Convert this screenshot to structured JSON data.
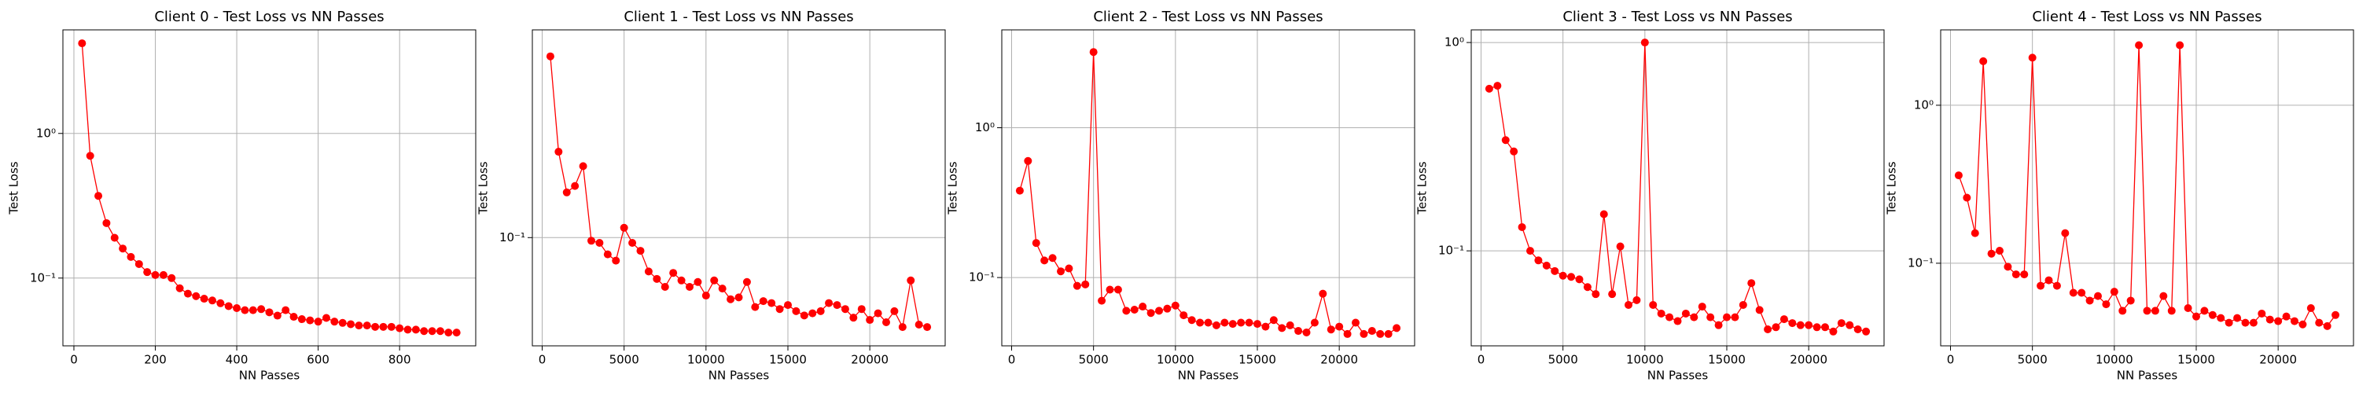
{
  "chart_data": [
    {
      "type": "line",
      "title": "Client 0 - Test Loss vs NN Passes",
      "x_label": "NN Passes",
      "y_label": "Test Loss",
      "color": "#ff0000",
      "log_y": true,
      "grid": true,
      "x": [
        20,
        40,
        60,
        80,
        100,
        120,
        140,
        160,
        180,
        200,
        220,
        240,
        260,
        280,
        300,
        320,
        340,
        360,
        380,
        400,
        420,
        440,
        460,
        480,
        500,
        520,
        540,
        560,
        580,
        600,
        620,
        640,
        660,
        680,
        700,
        720,
        740,
        760,
        780,
        800,
        820,
        840,
        860,
        880,
        900,
        920,
        940
      ],
      "values": [
        4.2,
        0.7,
        0.37,
        0.24,
        0.19,
        0.16,
        0.14,
        0.125,
        0.11,
        0.105,
        0.105,
        0.1,
        0.085,
        0.078,
        0.075,
        0.072,
        0.07,
        0.067,
        0.064,
        0.062,
        0.06,
        0.06,
        0.061,
        0.058,
        0.055,
        0.06,
        0.054,
        0.052,
        0.051,
        0.05,
        0.053,
        0.05,
        0.049,
        0.048,
        0.047,
        0.047,
        0.046,
        0.046,
        0.046,
        0.045,
        0.044,
        0.044,
        0.043,
        0.043,
        0.043,
        0.042,
        0.042
      ],
      "xlim": [
        -27,
        987
      ],
      "xticks": [
        0,
        200,
        400,
        600,
        800
      ],
      "ylim": [
        0.034,
        5.2
      ],
      "yticks": [
        {
          "value": 0.1,
          "label": "10⁻¹"
        },
        {
          "value": 1,
          "label": "10⁰"
        }
      ]
    },
    {
      "type": "line",
      "title": "Client 1 - Test Loss vs NN Passes",
      "x_label": "NN Passes",
      "y_label": "Test Loss",
      "color": "#ff0000",
      "log_y": true,
      "grid": true,
      "x": [
        500,
        1000,
        1500,
        2000,
        2500,
        3000,
        3500,
        4000,
        4500,
        5000,
        5500,
        6000,
        6500,
        7000,
        7500,
        8000,
        8500,
        9000,
        9500,
        10000,
        10500,
        11000,
        11500,
        12000,
        12500,
        13000,
        13500,
        14000,
        14500,
        15000,
        15500,
        16000,
        16500,
        17000,
        17500,
        18000,
        18500,
        19000,
        19500,
        20000,
        20500,
        21000,
        21500,
        22000,
        22500,
        23000,
        23500
      ],
      "values": [
        0.58,
        0.23,
        0.155,
        0.165,
        0.2,
        0.097,
        0.095,
        0.085,
        0.08,
        0.11,
        0.095,
        0.088,
        0.072,
        0.067,
        0.062,
        0.071,
        0.066,
        0.062,
        0.065,
        0.057,
        0.066,
        0.061,
        0.055,
        0.056,
        0.065,
        0.051,
        0.054,
        0.053,
        0.05,
        0.052,
        0.049,
        0.047,
        0.048,
        0.049,
        0.053,
        0.052,
        0.05,
        0.046,
        0.05,
        0.045,
        0.048,
        0.044,
        0.049,
        0.042,
        0.066,
        0.043,
        0.042
      ],
      "xlim": [
        -600,
        24600
      ],
      "xticks": [
        0,
        5000,
        10000,
        15000,
        20000
      ],
      "ylim": [
        0.035,
        0.75
      ],
      "yticks": [
        {
          "value": 0.1,
          "label": "10⁻¹"
        }
      ]
    },
    {
      "type": "line",
      "title": "Client 2 - Test Loss vs NN Passes",
      "x_label": "NN Passes",
      "y_label": "Test Loss",
      "color": "#ff0000",
      "log_y": true,
      "grid": true,
      "x": [
        500,
        1000,
        1500,
        2000,
        2500,
        3000,
        3500,
        4000,
        4500,
        5000,
        5500,
        6000,
        6500,
        7000,
        7500,
        8000,
        8500,
        9000,
        9500,
        10000,
        10500,
        11000,
        11500,
        12000,
        12500,
        13000,
        13500,
        14000,
        14500,
        15000,
        15500,
        16000,
        16500,
        17000,
        17500,
        18000,
        18500,
        19000,
        19500,
        20000,
        20500,
        21000,
        21500,
        22000,
        22500,
        23000,
        23500
      ],
      "values": [
        0.38,
        0.6,
        0.17,
        0.13,
        0.135,
        0.11,
        0.115,
        0.088,
        0.09,
        3.2,
        0.07,
        0.083,
        0.083,
        0.06,
        0.061,
        0.064,
        0.058,
        0.06,
        0.062,
        0.065,
        0.056,
        0.052,
        0.05,
        0.05,
        0.048,
        0.05,
        0.049,
        0.05,
        0.05,
        0.049,
        0.047,
        0.052,
        0.046,
        0.048,
        0.044,
        0.043,
        0.05,
        0.078,
        0.045,
        0.047,
        0.042,
        0.05,
        0.042,
        0.044,
        0.042,
        0.042,
        0.046
      ],
      "xlim": [
        -600,
        24600
      ],
      "xticks": [
        0,
        5000,
        10000,
        15000,
        20000
      ],
      "ylim": [
        0.035,
        4.5
      ],
      "yticks": [
        {
          "value": 0.1,
          "label": "10⁻¹"
        },
        {
          "value": 1,
          "label": "10⁰"
        }
      ]
    },
    {
      "type": "line",
      "title": "Client 3 - Test Loss vs NN Passes",
      "x_label": "NN Passes",
      "y_label": "Test Loss",
      "color": "#ff0000",
      "log_y": true,
      "grid": true,
      "x": [
        500,
        1000,
        1500,
        2000,
        2500,
        3000,
        3500,
        4000,
        4500,
        5000,
        5500,
        6000,
        6500,
        7000,
        7500,
        8000,
        8500,
        9000,
        9500,
        10000,
        10500,
        11000,
        11500,
        12000,
        12500,
        13000,
        13500,
        14000,
        14500,
        15000,
        15500,
        16000,
        16500,
        17000,
        17500,
        18000,
        18500,
        19000,
        19500,
        20000,
        20500,
        21000,
        21500,
        22000,
        22500,
        23000,
        23500
      ],
      "values": [
        0.6,
        0.62,
        0.34,
        0.3,
        0.13,
        0.1,
        0.09,
        0.085,
        0.08,
        0.076,
        0.075,
        0.073,
        0.067,
        0.062,
        0.15,
        0.062,
        0.105,
        0.055,
        0.058,
        1.0,
        0.055,
        0.05,
        0.048,
        0.046,
        0.05,
        0.048,
        0.054,
        0.048,
        0.044,
        0.048,
        0.048,
        0.055,
        0.07,
        0.052,
        0.042,
        0.043,
        0.047,
        0.045,
        0.044,
        0.044,
        0.043,
        0.043,
        0.041,
        0.045,
        0.044,
        0.042,
        0.041
      ],
      "xlim": [
        -600,
        24600
      ],
      "xticks": [
        0,
        5000,
        10000,
        15000,
        20000
      ],
      "ylim": [
        0.035,
        1.15
      ],
      "yticks": [
        {
          "value": 0.1,
          "label": "10⁻¹"
        },
        {
          "value": 1,
          "label": "10⁰"
        }
      ]
    },
    {
      "type": "line",
      "title": "Client 4 - Test Loss vs NN Passes",
      "x_label": "NN Passes",
      "y_label": "Test Loss",
      "color": "#ff0000",
      "log_y": true,
      "grid": true,
      "x": [
        500,
        1000,
        1500,
        2000,
        2500,
        3000,
        3500,
        4000,
        4500,
        5000,
        5500,
        6000,
        6500,
        7000,
        7500,
        8000,
        8500,
        9000,
        9500,
        10000,
        10500,
        11000,
        11500,
        12000,
        12500,
        13000,
        13500,
        14000,
        14500,
        15000,
        15500,
        16000,
        16500,
        17000,
        17500,
        18000,
        18500,
        19000,
        19500,
        20000,
        20500,
        21000,
        21500,
        22000,
        22500,
        23000,
        23500
      ],
      "values": [
        0.36,
        0.26,
        0.155,
        1.9,
        0.115,
        0.12,
        0.095,
        0.085,
        0.085,
        2.0,
        0.072,
        0.078,
        0.072,
        0.155,
        0.065,
        0.065,
        0.058,
        0.062,
        0.055,
        0.066,
        0.05,
        0.058,
        2.4,
        0.05,
        0.05,
        0.062,
        0.05,
        2.4,
        0.052,
        0.046,
        0.05,
        0.047,
        0.045,
        0.042,
        0.045,
        0.042,
        0.042,
        0.048,
        0.044,
        0.043,
        0.046,
        0.043,
        0.041,
        0.052,
        0.042,
        0.04,
        0.047
      ],
      "xlim": [
        -600,
        24600
      ],
      "xticks": [
        0,
        5000,
        10000,
        15000,
        20000
      ],
      "ylim": [
        0.03,
        3.0
      ],
      "yticks": [
        {
          "value": 0.1,
          "label": "10⁻¹"
        },
        {
          "value": 1,
          "label": "10⁰"
        }
      ]
    }
  ]
}
